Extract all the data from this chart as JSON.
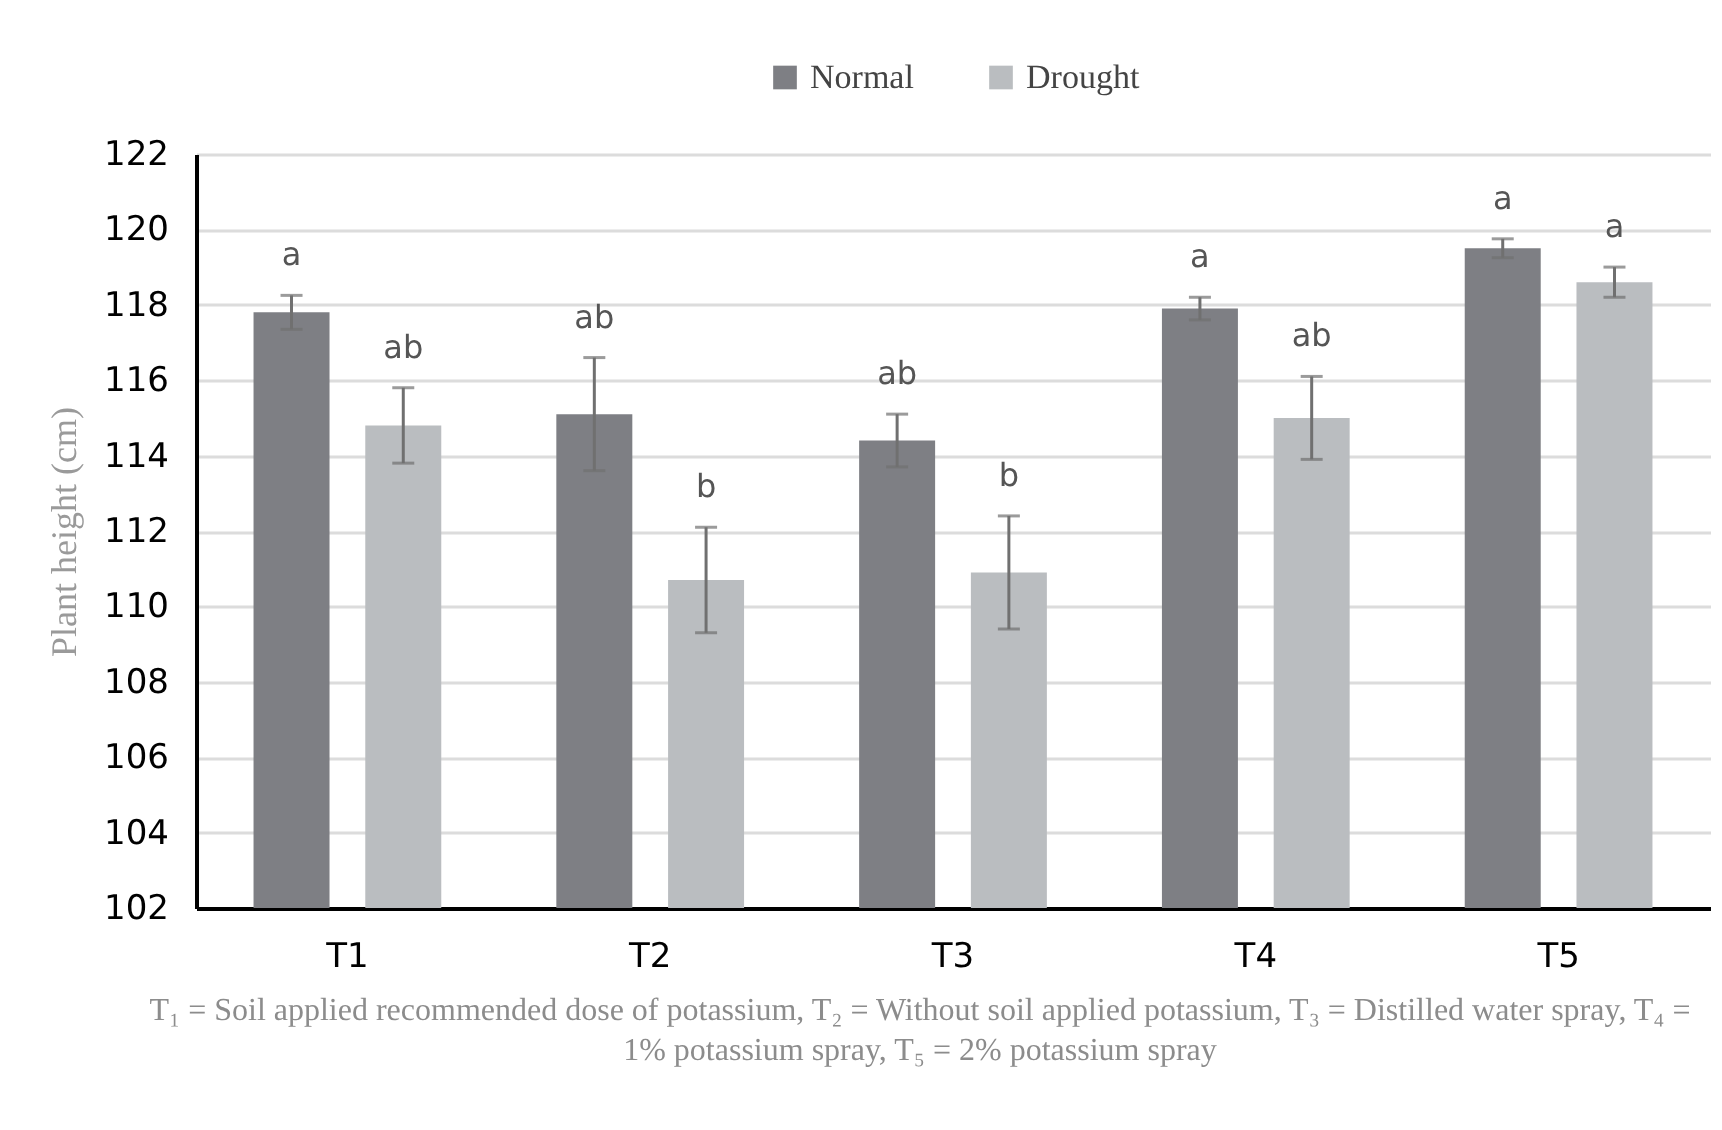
{
  "chart_data": {
    "type": "bar",
    "ylabel": "Plant height (cm)",
    "categories": [
      "T1",
      "T2",
      "T3",
      "T4",
      "T5"
    ],
    "series": [
      {
        "name": "Normal",
        "color": "#7e7f84",
        "values": [
          117.8,
          115.1,
          114.4,
          117.9,
          119.5
        ],
        "errors": [
          0.45,
          1.5,
          0.7,
          0.3,
          0.25
        ],
        "value_labels": [
          "a",
          "ab",
          "ab",
          "a",
          "a"
        ]
      },
      {
        "name": "Drought",
        "color": "#babdc0",
        "values": [
          114.8,
          110.7,
          110.9,
          115.0,
          118.6
        ],
        "errors": [
          1.0,
          1.4,
          1.5,
          1.1,
          0.4
        ],
        "value_labels": [
          "ab",
          "b",
          "b",
          "ab",
          "a"
        ]
      }
    ],
    "ylim": [
      102,
      122
    ],
    "yticks": [
      102,
      104,
      106,
      108,
      110,
      112,
      114,
      116,
      118,
      120,
      122
    ],
    "grid": "y",
    "legend": "top",
    "annotations": [
      "T₁ = Soil applied recommended dose of potassium, T₂ = Without soil applied potassium, T₃ = Distilled water spray, T₄ = 1% potassium spray, T₅ = 2% potassium spray"
    ]
  }
}
